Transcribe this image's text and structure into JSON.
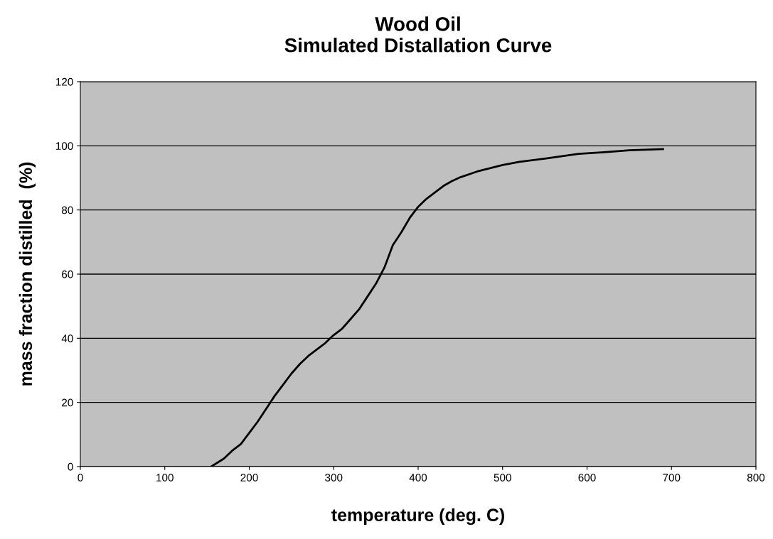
{
  "chart_data": {
    "type": "line",
    "title": "Wood Oil\nSimulated Distallation Curve",
    "xlabel": "temperature (deg. C)",
    "ylabel": "mass fraction distilled  (%)",
    "series": [
      {
        "color": "#000000",
        "x": [
          155,
          170,
          180,
          190,
          200,
          210,
          220,
          230,
          240,
          250,
          260,
          270,
          280,
          290,
          300,
          310,
          320,
          330,
          340,
          350,
          360,
          370,
          380,
          390,
          400,
          410,
          420,
          430,
          440,
          450,
          470,
          500,
          520,
          550,
          590,
          620,
          650,
          690
        ],
        "values": [
          0,
          2.5,
          5,
          7,
          10.5,
          14,
          18,
          22,
          25.5,
          29,
          32,
          34.5,
          36.5,
          38.5,
          41,
          43,
          46,
          49,
          53,
          57,
          62,
          69,
          73,
          77.5,
          81,
          83.5,
          85.5,
          87.5,
          89,
          90.2,
          92,
          94,
          95,
          96,
          97.5,
          98,
          98.6,
          99
        ]
      }
    ],
    "xlim": [
      0,
      800
    ],
    "xticks": [
      0,
      100,
      200,
      300,
      400,
      500,
      600,
      700,
      800
    ],
    "ylim": [
      0,
      120
    ],
    "yticks": [
      0,
      20,
      40,
      60,
      80,
      100,
      120
    ],
    "grid": "y",
    "legend": false,
    "marker": "none",
    "line_style": "solid"
  }
}
